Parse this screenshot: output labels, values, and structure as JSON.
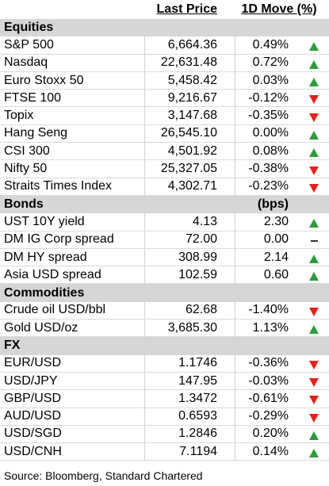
{
  "header": {
    "col_name": "",
    "col_price": "Last Price",
    "col_move": "1D Move (%)"
  },
  "sections": [
    {
      "title": "Equities",
      "unit": "",
      "rows": [
        {
          "name": "S&P 500",
          "price": "6,664.36",
          "move": "0.49%",
          "dir": "up"
        },
        {
          "name": "Nasdaq",
          "price": "22,631.48",
          "move": "0.72%",
          "dir": "up"
        },
        {
          "name": "Euro Stoxx 50",
          "price": "5,458.42",
          "move": "0.03%",
          "dir": "up"
        },
        {
          "name": "FTSE 100",
          "price": "9,216.67",
          "move": "-0.12%",
          "dir": "down"
        },
        {
          "name": "Topix",
          "price": "3,147.68",
          "move": "-0.35%",
          "dir": "down"
        },
        {
          "name": "Hang Seng",
          "price": "26,545.10",
          "move": "0.00%",
          "dir": "up"
        },
        {
          "name": "CSI 300",
          "price": "4,501.92",
          "move": "0.08%",
          "dir": "up"
        },
        {
          "name": "Nifty 50",
          "price": "25,327.05",
          "move": "-0.38%",
          "dir": "down"
        },
        {
          "name": "Straits Times Index",
          "price": "4,302.71",
          "move": "-0.23%",
          "dir": "down"
        }
      ]
    },
    {
      "title": "Bonds",
      "unit": "(bps)",
      "rows": [
        {
          "name": "UST 10Y yield",
          "price": "4.13",
          "move": "2.30",
          "dir": "up"
        },
        {
          "name": "DM IG Corp spread",
          "price": "72.00",
          "move": "0.00",
          "dir": "flat"
        },
        {
          "name": "DM HY spread",
          "price": "308.99",
          "move": "2.14",
          "dir": "up"
        },
        {
          "name": "Asia USD spread",
          "price": "102.59",
          "move": "0.60",
          "dir": "up"
        }
      ]
    },
    {
      "title": "Commodities",
      "unit": "",
      "rows": [
        {
          "name": "Crude oil USD/bbl",
          "price": "62.68",
          "move": "-1.40%",
          "dir": "down"
        },
        {
          "name": "Gold USD/oz",
          "price": "3,685.30",
          "move": "1.13%",
          "dir": "up"
        }
      ]
    },
    {
      "title": "FX",
      "unit": "",
      "rows": [
        {
          "name": "EUR/USD",
          "price": "1.1746",
          "move": "-0.36%",
          "dir": "down"
        },
        {
          "name": "USD/JPY",
          "price": "147.95",
          "move": "-0.03%",
          "dir": "down"
        },
        {
          "name": "GBP/USD",
          "price": "1.3472",
          "move": "-0.61%",
          "dir": "down"
        },
        {
          "name": "AUD/USD",
          "price": "0.6593",
          "move": "-0.29%",
          "dir": "down"
        },
        {
          "name": "USD/SGD",
          "price": "1.2846",
          "move": "0.20%",
          "dir": "up"
        },
        {
          "name": "USD/CNH",
          "price": "7.1194",
          "move": "0.14%",
          "dir": "up"
        }
      ]
    }
  ],
  "icons": {
    "up": "up-arrow-icon",
    "down": "down-arrow-icon",
    "flat": "no-change-dash-icon"
  },
  "colors": {
    "up": "#2e9a3b",
    "down": "#e0241b",
    "section_bg": "#d6d6d6"
  },
  "source": "Source: Bloomberg, Standard Chartered"
}
